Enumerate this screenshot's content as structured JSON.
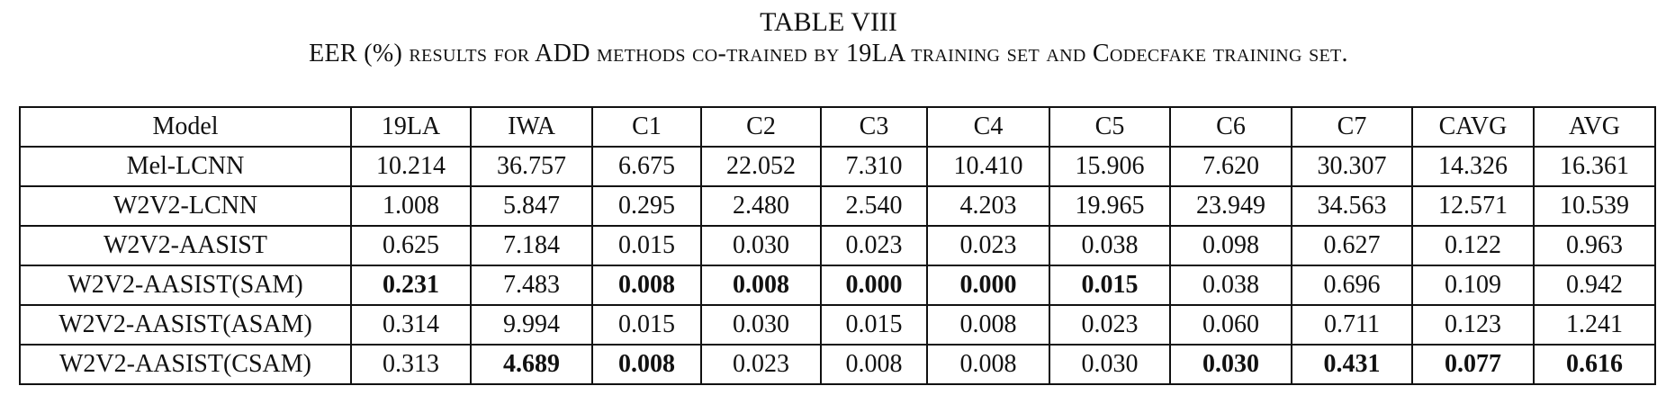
{
  "header": {
    "title": "TABLE VIII",
    "caption": "EER (%) results for ADD methods co-trained by 19LA training set and Codecfake training set."
  },
  "table": {
    "columns": [
      "Model",
      "19LA",
      "IWA",
      "C1",
      "C2",
      "C3",
      "C4",
      "C5",
      "C6",
      "C7",
      "CAVG",
      "AVG"
    ],
    "rows": [
      [
        "Mel-LCNN",
        "10.214",
        "36.757",
        "6.675",
        "22.052",
        "7.310",
        "10.410",
        "15.906",
        "7.620",
        "30.307",
        "14.326",
        "16.361"
      ],
      [
        "W2V2-LCNN",
        "1.008",
        "5.847",
        "0.295",
        "2.480",
        "2.540",
        "4.203",
        "19.965",
        "23.949",
        "34.563",
        "12.571",
        "10.539"
      ],
      [
        "W2V2-AASIST",
        "0.625",
        "7.184",
        "0.015",
        "0.030",
        "0.023",
        "0.023",
        "0.038",
        "0.098",
        "0.627",
        "0.122",
        "0.963"
      ],
      [
        "W2V2-AASIST(SAM)",
        "0.231",
        "7.483",
        "0.008",
        "0.008",
        "0.000",
        "0.000",
        "0.015",
        "0.038",
        "0.696",
        "0.109",
        "0.942"
      ],
      [
        "W2V2-AASIST(ASAM)",
        "0.314",
        "9.994",
        "0.015",
        "0.030",
        "0.015",
        "0.008",
        "0.023",
        "0.060",
        "0.711",
        "0.123",
        "1.241"
      ],
      [
        "W2V2-AASIST(CSAM)",
        "0.313",
        "4.689",
        "0.008",
        "0.023",
        "0.008",
        "0.008",
        "0.030",
        "0.030",
        "0.431",
        "0.077",
        "0.616"
      ]
    ],
    "bold_cells": [
      [
        3,
        1
      ],
      [
        3,
        3
      ],
      [
        3,
        4
      ],
      [
        3,
        5
      ],
      [
        3,
        6
      ],
      [
        3,
        7
      ],
      [
        5,
        2
      ],
      [
        5,
        3
      ],
      [
        5,
        8
      ],
      [
        5,
        9
      ],
      [
        5,
        10
      ],
      [
        5,
        11
      ]
    ]
  }
}
